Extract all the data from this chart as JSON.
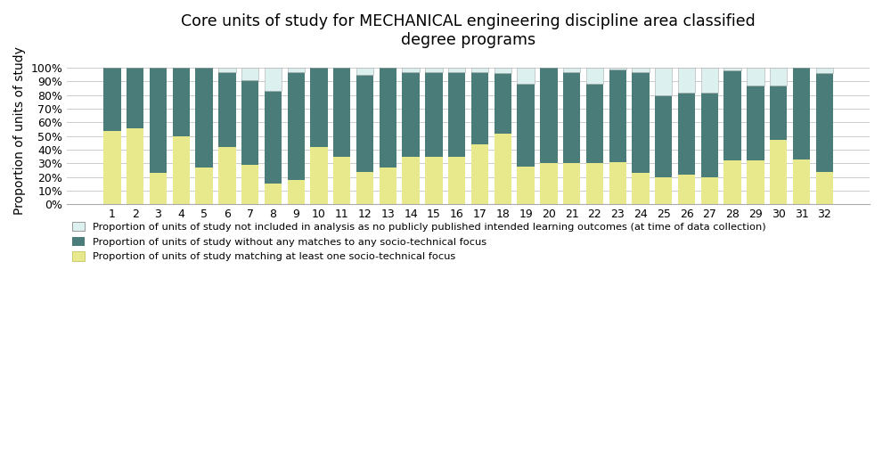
{
  "title": "Core units of study for MECHANICAL engineering discipline area classified\ndegree programs",
  "ylabel": "Proportion of units of study",
  "categories": [
    1,
    2,
    3,
    4,
    5,
    6,
    7,
    8,
    9,
    10,
    11,
    12,
    13,
    14,
    15,
    16,
    17,
    18,
    19,
    20,
    21,
    22,
    23,
    24,
    25,
    26,
    27,
    28,
    29,
    30,
    31,
    32
  ],
  "matching": [
    0.54,
    0.56,
    0.23,
    0.5,
    0.27,
    0.42,
    0.29,
    0.15,
    0.18,
    0.42,
    0.35,
    0.24,
    0.27,
    0.35,
    0.35,
    0.35,
    0.44,
    0.52,
    0.28,
    0.3,
    0.3,
    0.3,
    0.31,
    0.23,
    0.2,
    0.22,
    0.2,
    0.32,
    0.32,
    0.47,
    0.33,
    0.24
  ],
  "no_match": [
    0.46,
    0.44,
    0.77,
    0.5,
    0.73,
    0.55,
    0.62,
    0.68,
    0.79,
    0.58,
    0.65,
    0.71,
    0.73,
    0.62,
    0.62,
    0.62,
    0.53,
    0.44,
    0.6,
    0.7,
    0.67,
    0.58,
    0.68,
    0.74,
    0.6,
    0.6,
    0.62,
    0.66,
    0.55,
    0.4,
    0.67,
    0.72
  ],
  "not_included": [
    0.0,
    0.0,
    0.0,
    0.0,
    0.0,
    0.03,
    0.09,
    0.17,
    0.03,
    0.0,
    0.0,
    0.05,
    0.0,
    0.03,
    0.03,
    0.03,
    0.03,
    0.04,
    0.12,
    0.0,
    0.03,
    0.12,
    0.01,
    0.03,
    0.2,
    0.18,
    0.18,
    0.02,
    0.13,
    0.13,
    0.0,
    0.04
  ],
  "color_matching": "#E8E88C",
  "color_no_match": "#4A7C79",
  "color_not_included": "#DCF0F0",
  "legend_not_included": "Proportion of units of study not included in analysis as no publicly published intended learning outcomes (at time of data collection)",
  "legend_no_match": "Proportion of units of study without any matches to any socio-technical focus",
  "legend_matching": "Proportion of units of study matching at least one socio-technical focus",
  "yticks": [
    0.0,
    0.1,
    0.2,
    0.3,
    0.4,
    0.5,
    0.6,
    0.7,
    0.8,
    0.9,
    1.0
  ],
  "ytick_labels": [
    "0%",
    "10%",
    "20%",
    "30%",
    "40%",
    "50%",
    "60%",
    "70%",
    "80%",
    "90%",
    "100%"
  ],
  "background_color": "#ffffff",
  "grid_color": "#cccccc"
}
